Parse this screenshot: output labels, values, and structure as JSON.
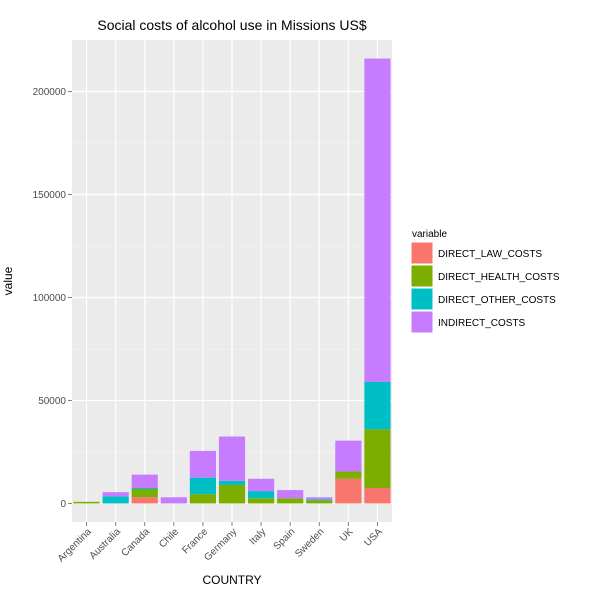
{
  "chart_data": {
    "type": "bar",
    "stacked": true,
    "title": "Social costs of alcohol use in Missions US$",
    "xlabel": "COUNTRY",
    "ylabel": "value",
    "ylim": [
      -9000,
      225000
    ],
    "yticks": [
      0,
      50000,
      100000,
      150000,
      200000
    ],
    "ytick_labels": [
      "0",
      "50000",
      "100000",
      "150000",
      "200000"
    ],
    "grid": true,
    "legend_title": "variable",
    "legend_position": "right",
    "categories": [
      "Argentina",
      "Australia",
      "Canada",
      "Chile",
      "France",
      "Germany",
      "Italy",
      "Spain",
      "Sweden",
      "UK",
      "USA"
    ],
    "series": [
      {
        "name": "DIRECT_LAW_COSTS",
        "color": "#F8766D",
        "values": [
          0,
          0,
          3000,
          0,
          0,
          0,
          0,
          0,
          0,
          12000,
          7500
        ]
      },
      {
        "name": "DIRECT_HEALTH_COSTS",
        "color": "#7CAE00",
        "values": [
          800,
          0,
          4000,
          0,
          4500,
          9000,
          2500,
          2500,
          1500,
          3500,
          28500
        ]
      },
      {
        "name": "DIRECT_OTHER_COSTS",
        "color": "#00BFC4",
        "values": [
          0,
          3500,
          500,
          0,
          8000,
          2000,
          3500,
          0,
          500,
          0,
          23000
        ]
      },
      {
        "name": "INDIRECT_COSTS",
        "color": "#C77CFF",
        "values": [
          0,
          2000,
          6500,
          3000,
          13000,
          21500,
          6000,
          4000,
          1000,
          15000,
          157000
        ]
      }
    ]
  }
}
